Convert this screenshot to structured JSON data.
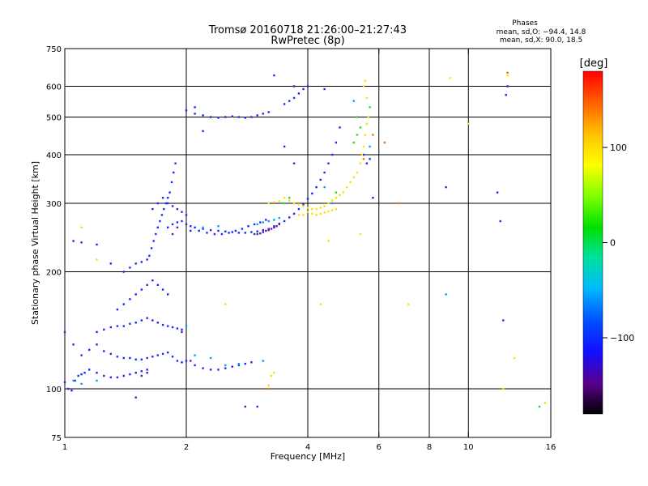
{
  "chart_data": {
    "type": "scatter",
    "title": "Tromsø 20160718 21:26:00–21:27:43",
    "subtitle": "RwPretec (8p)",
    "xlabel": "Frequency [MHz]",
    "ylabel": "Stationary phase Virtual Height [km]",
    "x_scale": "log",
    "y_scale": "log",
    "xlim": [
      1,
      16
    ],
    "ylim": [
      75,
      750
    ],
    "x_ticks": [
      1,
      2,
      4,
      6,
      8,
      10,
      16
    ],
    "x_tick_labels": [
      "1",
      "2",
      "4",
      "6",
      "8",
      "10",
      "16"
    ],
    "x_gridlines": [
      2,
      4,
      6,
      8,
      10
    ],
    "y_ticks": [
      75,
      100,
      200,
      300,
      400,
      500,
      600,
      750
    ],
    "y_tick_labels": [
      "75",
      "100",
      "200",
      "300",
      "400",
      "500",
      "600",
      "750"
    ],
    "y_gridlines": [
      100,
      200,
      300,
      400,
      500,
      600
    ],
    "grid": true,
    "legend": {
      "title": "Phases",
      "lines": [
        "mean, sd,O: −94.4, 14.8",
        "mean, sd,X:  90.0, 18.5"
      ],
      "placement": "top-right"
    },
    "colorbar": {
      "label": "[deg]",
      "min": -180,
      "max": 180,
      "ticks": [
        100,
        0,
        -100
      ],
      "tick_labels": [
        "100",
        "0",
        "−100"
      ],
      "colormap": [
        "#000000",
        "#5a0090",
        "#1010ff",
        "#0050ff",
        "#00b8ff",
        "#00e0a0",
        "#00e000",
        "#80ff00",
        "#ffff00",
        "#ffc000",
        "#ff6000",
        "#ff0000"
      ]
    },
    "series": [
      {
        "phase": -100,
        "color": "#1a28ff",
        "points": [
          [
            1.0,
            104
          ],
          [
            1.02,
            100
          ],
          [
            1.04,
            99
          ],
          [
            1.06,
            105
          ],
          [
            1.08,
            108
          ],
          [
            1.1,
            109
          ],
          [
            1.12,
            110
          ],
          [
            1.15,
            112
          ],
          [
            1.2,
            110
          ],
          [
            1.25,
            108
          ],
          [
            1.3,
            107
          ],
          [
            1.35,
            107
          ],
          [
            1.4,
            108
          ],
          [
            1.45,
            109
          ],
          [
            1.5,
            110
          ],
          [
            1.55,
            111
          ],
          [
            1.6,
            112
          ],
          [
            1.1,
            122
          ],
          [
            1.15,
            126
          ],
          [
            1.2,
            130
          ],
          [
            1.25,
            125
          ],
          [
            1.3,
            123
          ],
          [
            1.35,
            121
          ],
          [
            1.4,
            120
          ],
          [
            1.45,
            120
          ],
          [
            1.5,
            119
          ],
          [
            1.55,
            119
          ],
          [
            1.6,
            120
          ],
          [
            1.65,
            121
          ],
          [
            1.7,
            122
          ],
          [
            1.75,
            123
          ],
          [
            1.8,
            124
          ],
          [
            1.85,
            121
          ],
          [
            1.9,
            118
          ],
          [
            1.95,
            117
          ],
          [
            1.2,
            140
          ],
          [
            1.25,
            142
          ],
          [
            1.3,
            144
          ],
          [
            1.35,
            145
          ],
          [
            1.4,
            145
          ],
          [
            1.45,
            147
          ],
          [
            1.5,
            148
          ],
          [
            1.55,
            150
          ],
          [
            1.6,
            152
          ],
          [
            1.65,
            150
          ],
          [
            1.7,
            148
          ],
          [
            1.75,
            146
          ],
          [
            1.8,
            145
          ],
          [
            1.85,
            144
          ],
          [
            1.9,
            143
          ],
          [
            1.95,
            142
          ],
          [
            1.35,
            160
          ],
          [
            1.4,
            165
          ],
          [
            1.45,
            170
          ],
          [
            1.5,
            175
          ],
          [
            1.55,
            180
          ],
          [
            1.6,
            185
          ],
          [
            1.65,
            190
          ],
          [
            1.7,
            185
          ],
          [
            1.75,
            180
          ],
          [
            1.8,
            175
          ],
          [
            1.4,
            200
          ],
          [
            1.45,
            205
          ],
          [
            1.5,
            210
          ],
          [
            1.55,
            212
          ],
          [
            1.6,
            215
          ],
          [
            1.62,
            220
          ],
          [
            1.64,
            230
          ],
          [
            1.66,
            240
          ],
          [
            1.68,
            250
          ],
          [
            1.7,
            260
          ],
          [
            1.72,
            270
          ],
          [
            1.74,
            280
          ],
          [
            1.76,
            290
          ],
          [
            1.78,
            300
          ],
          [
            1.8,
            310
          ],
          [
            1.82,
            320
          ],
          [
            1.84,
            340
          ],
          [
            1.86,
            360
          ],
          [
            1.88,
            380
          ],
          [
            1.65,
            290
          ],
          [
            1.7,
            300
          ],
          [
            1.75,
            310
          ],
          [
            1.8,
            300
          ],
          [
            1.85,
            295
          ],
          [
            1.9,
            290
          ],
          [
            1.95,
            285
          ],
          [
            2.0,
            280
          ],
          [
            1.8,
            260
          ],
          [
            1.85,
            265
          ],
          [
            1.9,
            268
          ],
          [
            1.95,
            270
          ],
          [
            2.0,
            265
          ],
          [
            2.05,
            262
          ],
          [
            2.1,
            260
          ],
          [
            2.2,
            258
          ],
          [
            2.3,
            256
          ],
          [
            2.4,
            255
          ],
          [
            2.5,
            254
          ],
          [
            2.6,
            253
          ],
          [
            2.7,
            252
          ],
          [
            2.8,
            252
          ],
          [
            2.9,
            253
          ],
          [
            3.0,
            254
          ],
          [
            3.1,
            256
          ],
          [
            3.2,
            258
          ],
          [
            3.3,
            262
          ],
          [
            3.4,
            266
          ],
          [
            3.5,
            270
          ],
          [
            3.6,
            276
          ],
          [
            3.7,
            282
          ],
          [
            3.8,
            290
          ],
          [
            3.9,
            298
          ],
          [
            4.0,
            308
          ],
          [
            4.1,
            318
          ],
          [
            4.2,
            330
          ],
          [
            4.3,
            345
          ],
          [
            4.4,
            360
          ],
          [
            4.5,
            380
          ],
          [
            4.6,
            400
          ],
          [
            4.7,
            430
          ],
          [
            4.8,
            470
          ],
          [
            2.05,
            255
          ],
          [
            2.15,
            255
          ],
          [
            2.25,
            252
          ],
          [
            2.35,
            250
          ],
          [
            2.45,
            250
          ],
          [
            2.55,
            252
          ],
          [
            2.65,
            255
          ],
          [
            2.75,
            258
          ],
          [
            2.85,
            262
          ],
          [
            2.95,
            265
          ],
          [
            3.05,
            268
          ],
          [
            3.15,
            272
          ],
          [
            2.0,
            520
          ],
          [
            2.1,
            510
          ],
          [
            2.2,
            505
          ],
          [
            2.3,
            500
          ],
          [
            2.4,
            498
          ],
          [
            2.5,
            500
          ],
          [
            2.6,
            502
          ],
          [
            2.7,
            500
          ],
          [
            2.8,
            498
          ],
          [
            2.9,
            500
          ],
          [
            3.0,
            505
          ],
          [
            3.1,
            510
          ],
          [
            3.2,
            515
          ],
          [
            3.5,
            540
          ],
          [
            3.6,
            550
          ],
          [
            3.7,
            560
          ],
          [
            3.8,
            575
          ],
          [
            3.9,
            590
          ],
          [
            4.0,
            600
          ],
          [
            2.0,
            118
          ],
          [
            2.1,
            115
          ],
          [
            2.2,
            113
          ],
          [
            2.3,
            112
          ],
          [
            2.4,
            112
          ],
          [
            2.5,
            113
          ],
          [
            2.6,
            114
          ],
          [
            2.7,
            115
          ],
          [
            2.8,
            116
          ],
          [
            2.9,
            117
          ],
          [
            1.05,
            240
          ],
          [
            1.1,
            238
          ],
          [
            1.2,
            235
          ],
          [
            1.3,
            210
          ],
          [
            5.5,
            400
          ],
          [
            5.6,
            380
          ],
          [
            5.7,
            390
          ],
          [
            5.8,
            310
          ],
          [
            8.8,
            330
          ],
          [
            11.8,
            320
          ],
          [
            12.5,
            600
          ],
          [
            12.4,
            570
          ],
          [
            12.2,
            150
          ],
          [
            12.0,
            270
          ],
          [
            3.3,
            640
          ],
          [
            3.7,
            600
          ],
          [
            2.1,
            530
          ],
          [
            2.2,
            460
          ],
          [
            3.5,
            420
          ],
          [
            3.7,
            380
          ],
          [
            4.4,
            590
          ],
          [
            3.0,
            90
          ],
          [
            1.0,
            140
          ],
          [
            1.05,
            130
          ]
        ]
      },
      {
        "phase": -130,
        "color": "#5a1aa8",
        "points": [
          [
            2.95,
            250
          ],
          [
            3.0,
            250
          ],
          [
            3.05,
            251
          ],
          [
            3.1,
            253
          ],
          [
            3.15,
            255
          ],
          [
            3.2,
            256
          ],
          [
            3.25,
            258
          ],
          [
            3.3,
            260
          ],
          [
            3.35,
            262
          ],
          [
            3.4,
            265
          ],
          [
            1.6,
            110
          ],
          [
            1.55,
            108
          ],
          [
            1.5,
            95
          ],
          [
            1.95,
            140
          ],
          [
            2.05,
            118
          ],
          [
            2.8,
            90
          ],
          [
            1.9,
            260
          ],
          [
            1.85,
            250
          ]
        ]
      },
      {
        "phase": -40,
        "color": "#00a0ff",
        "points": [
          [
            2.1,
            122
          ],
          [
            2.3,
            120
          ],
          [
            2.5,
            115
          ],
          [
            2.7,
            116
          ],
          [
            3.1,
            118
          ],
          [
            3.0,
            265
          ],
          [
            3.1,
            268
          ],
          [
            3.2,
            270
          ],
          [
            3.3,
            272
          ],
          [
            3.4,
            275
          ],
          [
            8.8,
            175
          ],
          [
            4.6,
            300
          ],
          [
            4.4,
            330
          ],
          [
            1.05,
            105
          ],
          [
            1.1,
            103
          ],
          [
            1.2,
            105
          ],
          [
            5.2,
            550
          ],
          [
            5.7,
            420
          ],
          [
            2.0,
            145
          ],
          [
            2.2,
            260
          ],
          [
            2.4,
            262
          ]
        ]
      },
      {
        "phase": 40,
        "color": "#20e020",
        "points": [
          [
            5.2,
            430
          ],
          [
            5.3,
            450
          ],
          [
            5.4,
            470
          ],
          [
            5.3,
            500
          ],
          [
            5.6,
            480
          ],
          [
            15.0,
            90
          ],
          [
            3.5,
            300
          ],
          [
            3.6,
            310
          ],
          [
            4.7,
            320
          ],
          [
            5.7,
            530
          ]
        ]
      },
      {
        "phase": 100,
        "color": "#ffe000",
        "points": [
          [
            3.5,
            310
          ],
          [
            3.6,
            305
          ],
          [
            3.7,
            300
          ],
          [
            3.8,
            298
          ],
          [
            3.9,
            295
          ],
          [
            4.0,
            292
          ],
          [
            4.1,
            290
          ],
          [
            4.2,
            290
          ],
          [
            4.3,
            292
          ],
          [
            4.4,
            295
          ],
          [
            4.5,
            300
          ],
          [
            4.6,
            305
          ],
          [
            4.7,
            310
          ],
          [
            4.8,
            315
          ],
          [
            4.9,
            320
          ],
          [
            5.0,
            330
          ],
          [
            5.1,
            340
          ],
          [
            5.2,
            350
          ],
          [
            5.3,
            360
          ],
          [
            5.4,
            380
          ],
          [
            5.45,
            400
          ],
          [
            5.5,
            420
          ],
          [
            5.55,
            450
          ],
          [
            5.6,
            480
          ],
          [
            5.65,
            500
          ],
          [
            5.6,
            560
          ],
          [
            5.5,
            600
          ],
          [
            5.55,
            620
          ],
          [
            4.0,
            285
          ],
          [
            4.1,
            282
          ],
          [
            4.2,
            280
          ],
          [
            4.3,
            282
          ],
          [
            4.4,
            284
          ],
          [
            4.5,
            286
          ],
          [
            4.6,
            288
          ],
          [
            4.7,
            290
          ],
          [
            3.9,
            280
          ],
          [
            3.8,
            280
          ],
          [
            3.2,
            300
          ],
          [
            3.3,
            302
          ],
          [
            3.4,
            304
          ],
          [
            3.2,
            102
          ],
          [
            3.25,
            108
          ],
          [
            9.0,
            630
          ],
          [
            10.0,
            480
          ],
          [
            12.5,
            640
          ],
          [
            13.0,
            120
          ],
          [
            12.2,
            100
          ],
          [
            15.5,
            92
          ],
          [
            1.1,
            260
          ],
          [
            2.5,
            165
          ],
          [
            3.3,
            110
          ],
          [
            4.5,
            240
          ],
          [
            5.4,
            250
          ],
          [
            1.2,
            215
          ],
          [
            7.1,
            165
          ],
          [
            4.3,
            165
          ]
        ]
      },
      {
        "phase": 140,
        "color": "#ff7000",
        "points": [
          [
            3.2,
            100
          ],
          [
            6.7,
            300
          ],
          [
            6.2,
            430
          ],
          [
            5.8,
            450
          ],
          [
            5.5,
            390
          ],
          [
            12.5,
            650
          ]
        ]
      }
    ]
  }
}
